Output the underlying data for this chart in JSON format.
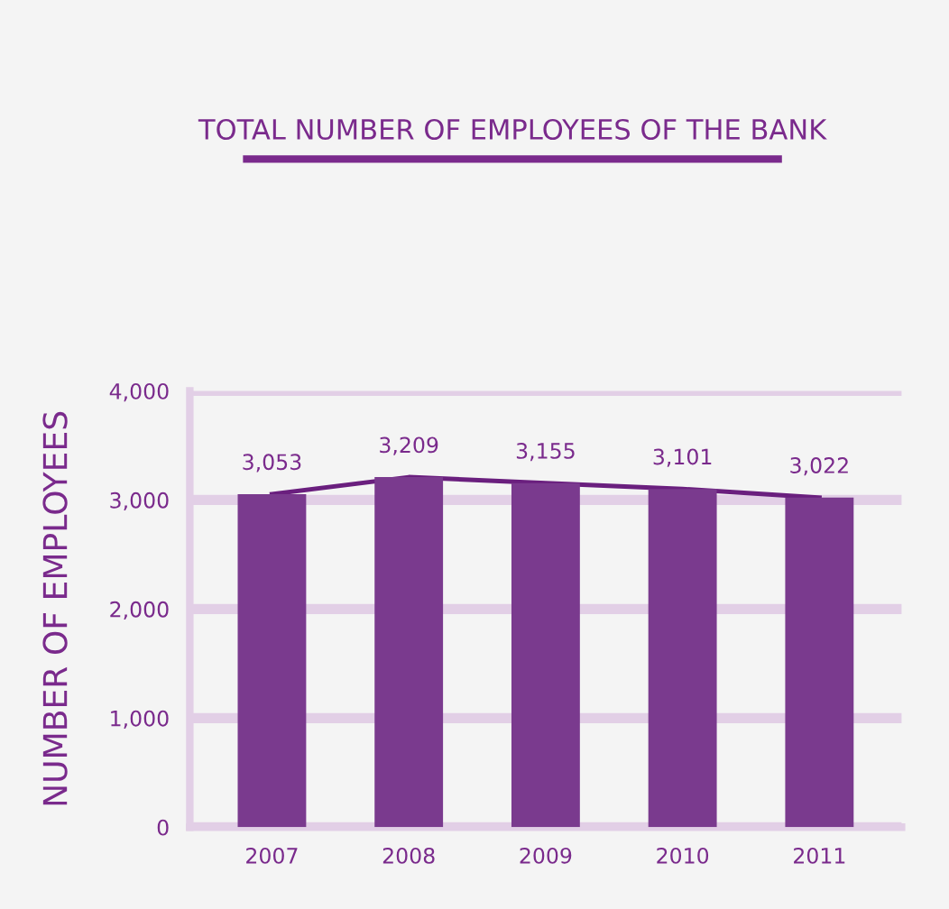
{
  "chart_data": {
    "type": "bar",
    "title": "TOTAL NUMBER OF EMPLOYEES OF THE BANK",
    "ylabel": "NUMBER OF EMPLOYEES",
    "categories": [
      "2007",
      "2008",
      "2009",
      "2010",
      "2011"
    ],
    "series": [
      {
        "color": "#7a3a8e",
        "values": [
          3053,
          3209,
          3155,
          3101,
          3022
        ],
        "value_labels": [
          "3,053",
          "3,209",
          "3,155",
          "3,101",
          "3,022"
        ]
      },
      {
        "type": "line",
        "color": "#6a1f7e",
        "values": [
          3053,
          3209,
          3155,
          3101,
          3022
        ]
      }
    ],
    "ylim": [
      0,
      4000
    ],
    "yticks": [
      0,
      {
        "value": 1000,
        "label": "1,000"
      },
      {
        "value": 2000,
        "label": "2,000"
      },
      {
        "value": 3000,
        "label": "3,000"
      },
      {
        "value": 4000,
        "label": "4,000"
      }
    ],
    "grid": "y",
    "marker": "none"
  }
}
